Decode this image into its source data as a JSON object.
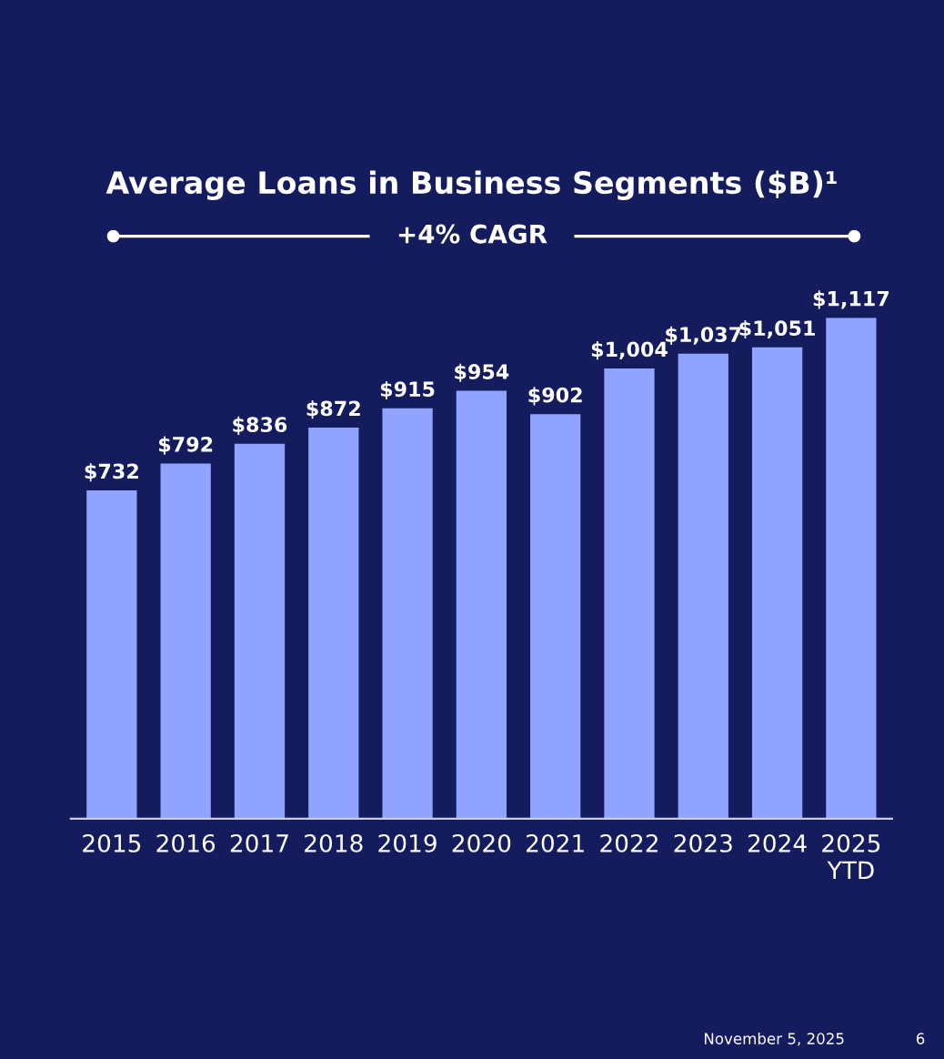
{
  "chart_data": {
    "type": "bar",
    "title": "Average Loans in Business Segments ($B)¹",
    "categories": [
      "2015",
      "2016",
      "2017",
      "2018",
      "2019",
      "2020",
      "2021",
      "2022",
      "2023",
      "2024",
      "2025\nYTD"
    ],
    "values": [
      732,
      792,
      836,
      872,
      915,
      954,
      902,
      1004,
      1037,
      1051,
      1117
    ],
    "value_labels": [
      "$732",
      "$792",
      "$836",
      "$872",
      "$915",
      "$954",
      "$902",
      "$1,004",
      "$1,037",
      "$1,051",
      "$1,117"
    ],
    "color": "#8fa3ff",
    "annotations": [
      "+4% CAGR",
      "November 5, 2025",
      "6"
    ],
    "grid": false,
    "legend": false
  }
}
